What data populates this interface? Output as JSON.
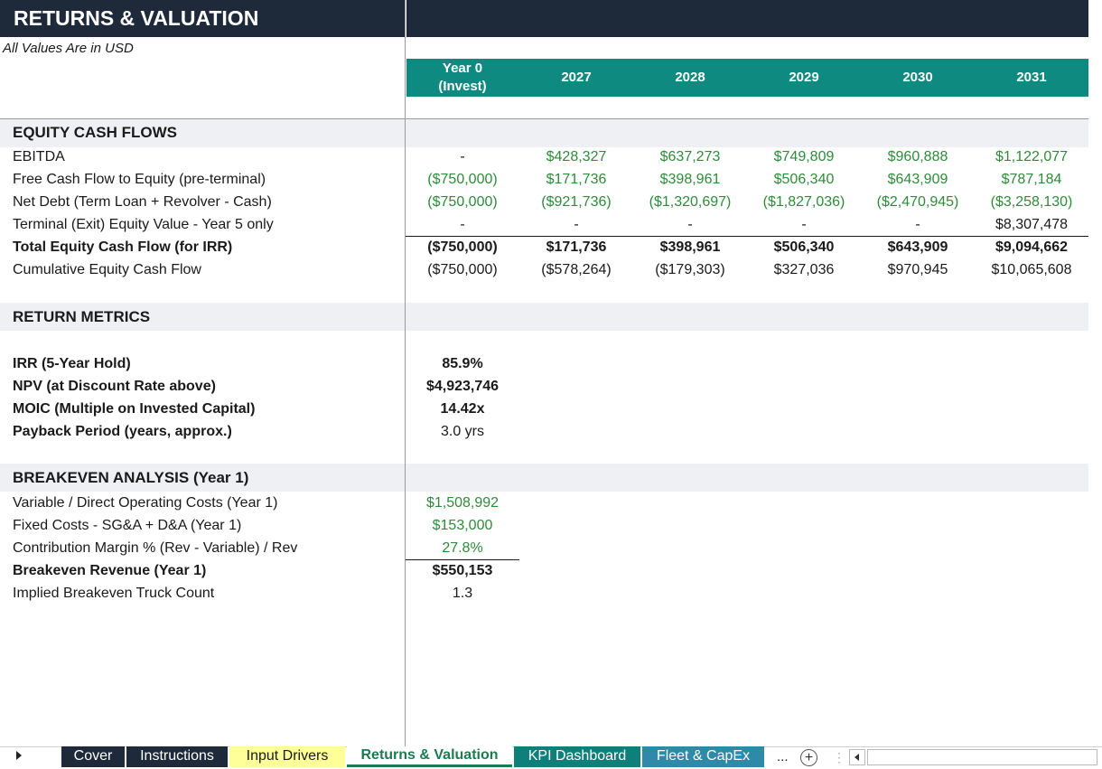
{
  "title": "RETURNS & VALUATION",
  "subtitle": "All Values Are in USD",
  "years": [
    "Year 0\n(Invest)",
    "2027",
    "2028",
    "2029",
    "2030",
    "2031"
  ],
  "sections": {
    "equity": "EQUITY CASH FLOWS",
    "returns": "RETURN METRICS",
    "breakeven": "BREAKEVEN ANALYSIS  (Year 1)"
  },
  "equity_rows": [
    {
      "label": "EBITDA",
      "values": [
        "-",
        "$428,327",
        "$637,273",
        "$749,809",
        "$960,888",
        "$1,122,077"
      ]
    },
    {
      "label": "Free Cash Flow to Equity (pre-terminal)",
      "values": [
        "($750,000)",
        "$171,736",
        "$398,961",
        "$506,340",
        "$643,909",
        "$787,184"
      ]
    },
    {
      "label": "Net Debt (Term Loan + Revolver - Cash)",
      "values": [
        "($750,000)",
        "($921,736)",
        "($1,320,697)",
        "($1,827,036)",
        "($2,470,945)",
        "($3,258,130)"
      ]
    },
    {
      "label": "Terminal (Exit) Equity Value - Year 5 only",
      "values": [
        "-",
        "-",
        "-",
        "-",
        "-",
        "$8,307,478"
      ]
    },
    {
      "label": "Total Equity Cash Flow (for IRR)",
      "values": [
        "($750,000)",
        "$171,736",
        "$398,961",
        "$506,340",
        "$643,909",
        "$9,094,662"
      ]
    },
    {
      "label": "Cumulative Equity Cash Flow",
      "values": [
        "($750,000)",
        "($578,264)",
        "($179,303)",
        "$327,036",
        "$970,945",
        "$10,065,608"
      ]
    }
  ],
  "return_rows": [
    {
      "label": "IRR (5-Year Hold)",
      "value": "85.9%"
    },
    {
      "label": "NPV (at Discount Rate above)",
      "value": "$4,923,746"
    },
    {
      "label": "MOIC (Multiple on Invested Capital)",
      "value": "14.42x"
    },
    {
      "label": "Payback Period (years, approx.)",
      "value": "3.0 yrs"
    }
  ],
  "breakeven_rows": [
    {
      "label": "Variable / Direct Operating Costs (Year 1)",
      "value": "$1,508,992"
    },
    {
      "label": "Fixed Costs - SG&A + D&A (Year 1)",
      "value": "$153,000"
    },
    {
      "label": "Contribution Margin % (Rev - Variable) / Rev",
      "value": "27.8%"
    },
    {
      "label": "Breakeven Revenue (Year 1)",
      "value": "$550,153"
    },
    {
      "label": "Implied Breakeven Truck Count",
      "value": "1.3"
    }
  ],
  "tabs": [
    {
      "label": "Cover"
    },
    {
      "label": "Instructions"
    },
    {
      "label": "Input Drivers"
    },
    {
      "label": "Returns & Valuation"
    },
    {
      "label": "KPI Dashboard"
    },
    {
      "label": "Fleet & CapEx"
    }
  ],
  "tab_more": "...",
  "colors": {
    "header_dark": "#1e2a3a",
    "teal": "#0e8a80",
    "green_text": "#2e8b3a",
    "section_band": "#eef0f4",
    "tab_yellow": "#ffff99"
  }
}
